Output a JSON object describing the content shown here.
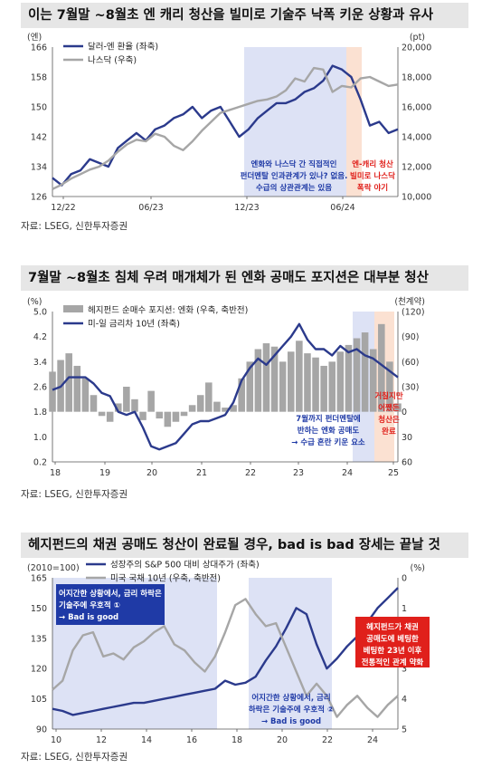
{
  "panels": [
    {
      "title": "이는 7월말 ~8월초 엔 캐리 청산을 빌미로 기술주 낙폭 키운 상황과 유사",
      "source": "자료: LSEG, 신한투자증권",
      "chart_data": {
        "type": "line",
        "left_unit": "(엔)",
        "right_unit": "(pt)",
        "left_ticks": [
          "166",
          "158",
          "150",
          "142",
          "134",
          "126"
        ],
        "right_ticks": [
          "20,000",
          "18,000",
          "16,000",
          "14,000",
          "12,000",
          "10,000"
        ],
        "x_ticks": [
          "12/22",
          "06/23",
          "12/23",
          "06/24"
        ],
        "ylim_left": [
          126,
          166
        ],
        "ylim_right": [
          10000,
          20000
        ],
        "series": [
          {
            "name": "달러-엔 환율 (좌축)",
            "color": "#2b3a8c",
            "axis": "left",
            "values": [
              131,
              129,
              132,
              133,
              136,
              135,
              134,
              139,
              141,
              143,
              141,
              144,
              145,
              147,
              148,
              150,
              147,
              149,
              150,
              146,
              142,
              144,
              147,
              149,
              151,
              151,
              152,
              154,
              155,
              157,
              161,
              160,
              158,
              152,
              145,
              146,
              143,
              144
            ]
          },
          {
            "name": "나스닥 (우축)",
            "color": "#a6a6a6",
            "axis": "right",
            "values": [
              10500,
              10800,
              11200,
              11500,
              11800,
              12000,
              12400,
              13000,
              13500,
              13800,
              13700,
              14200,
              14000,
              13400,
              13100,
              13700,
              14400,
              15000,
              15600,
              15800,
              16000,
              16200,
              16400,
              16500,
              16700,
              17100,
              17900,
              17700,
              18600,
              18500,
              17000,
              17400,
              17300,
              17900,
              18000,
              17700,
              17400,
              17500
            ]
          }
        ],
        "annotations": [
          {
            "lines": [
              "엔화와 나스닥 간 직접적인",
              "펀더멘탈 인과관계가 있나? 없음.",
              "수급의 상관관계는 있음"
            ],
            "color": "#1f3aa6"
          },
          {
            "lines": [
              "엔-캐리 청산",
              "빌미로 나스닥",
              "폭락 야기"
            ],
            "color": "#e0201b"
          }
        ]
      }
    },
    {
      "title": "7월말 ~8월초 침체 우려 매개체가 된 엔화 공매도 포지션은 대부분 청산",
      "source": "자료: LSEG, 신한투자증권",
      "chart_data": {
        "type": "line",
        "left_unit": "(%)",
        "right_unit": "(천계약)",
        "left_ticks": [
          "5.0",
          "4.2",
          "3.4",
          "2.6",
          "1.8",
          "1.0",
          "0.2"
        ],
        "right_ticks": [
          "(120)",
          "(90)",
          "(60)",
          "(30)",
          "0",
          "30",
          "60"
        ],
        "x_ticks": [
          "18",
          "19",
          "20",
          "21",
          "22",
          "23",
          "24",
          "25"
        ],
        "ylim_left": [
          0.2,
          5.0
        ],
        "ylim_right": [
          60,
          -120
        ],
        "series": [
          {
            "name": "헤지펀드 순매수 포지션: 엔화 (우축, 축반전)",
            "color": "#a6a6a6",
            "axis": "right",
            "kind": "bar",
            "values": [
              -48,
              -62,
              -70,
              -55,
              -40,
              -20,
              5,
              12,
              -10,
              -30,
              -15,
              10,
              -25,
              8,
              18,
              12,
              5,
              -8,
              -20,
              -35,
              -12,
              -5,
              -8,
              -40,
              -60,
              -75,
              -82,
              -78,
              -60,
              -72,
              -85,
              -70,
              -65,
              -55,
              -60,
              -72,
              -80,
              -88,
              -95,
              -75,
              -105,
              -60,
              -10
            ]
          },
          {
            "name": "미-일 금리차 10년 (좌축)",
            "color": "#2b3a8c",
            "axis": "left",
            "values": [
              2.5,
              2.6,
              2.9,
              2.9,
              2.9,
              2.7,
              2.4,
              2.3,
              1.8,
              1.7,
              1.8,
              1.3,
              0.7,
              0.6,
              0.7,
              0.8,
              1.1,
              1.4,
              1.5,
              1.5,
              1.6,
              1.7,
              2.1,
              2.8,
              3.2,
              3.5,
              3.3,
              3.6,
              3.9,
              4.2,
              4.6,
              4.1,
              3.8,
              3.8,
              3.6,
              3.9,
              3.7,
              3.8,
              3.6,
              3.5,
              3.3,
              3.1,
              2.9
            ]
          }
        ],
        "annotations": [
          {
            "lines": [
              "7월까지 펀더멘탈에",
              "반하는 엔화 공매도",
              "→ 수급 혼란 키운 요소"
            ],
            "color": "#1f3aa6"
          },
          {
            "lines": [
              "거칠지만",
              "어쨌든",
              "청산은",
              "완료"
            ],
            "color": "#e0201b"
          }
        ]
      }
    },
    {
      "title": "헤지펀드의 채권 공매도 청산이 완료될 경우, bad is bad 장세는 끝날 것",
      "source": "자료: LSEG, 신한투자증권",
      "chart_data": {
        "type": "line",
        "left_unit": "(2010=100)",
        "right_unit": "(%)",
        "left_ticks": [
          "165",
          "150",
          "135",
          "120",
          "105",
          "90"
        ],
        "right_ticks": [
          "0",
          "1",
          "2",
          "3",
          "4",
          "5"
        ],
        "x_ticks": [
          "10",
          "12",
          "14",
          "16",
          "18",
          "20",
          "22",
          "24"
        ],
        "ylim_left": [
          90,
          165
        ],
        "ylim_right": [
          5,
          0
        ],
        "series": [
          {
            "name": "성장주의 S&P 500 대비 상대주가 (좌축)",
            "color": "#2b3a8c",
            "axis": "left",
            "values": [
              100,
              99,
              97,
              98,
              99,
              100,
              101,
              102,
              103,
              103,
              104,
              105,
              106,
              107,
              108,
              109,
              110,
              114,
              112,
              113,
              116,
              124,
              131,
              140,
              150,
              147,
              132,
              120,
              125,
              131,
              136,
              143,
              150,
              155,
              160
            ]
          },
          {
            "name": "미국 국채 10년 (우축, 축반전)",
            "color": "#a6a6a6",
            "axis": "right",
            "values": [
              3.7,
              3.4,
              2.4,
              1.9,
              1.8,
              2.6,
              2.5,
              2.7,
              2.3,
              2.1,
              1.8,
              1.6,
              2.2,
              2.4,
              2.8,
              3.1,
              2.6,
              1.8,
              0.9,
              0.7,
              1.2,
              1.6,
              1.5,
              2.3,
              3.1,
              3.9,
              3.5,
              3.9,
              4.6,
              4.2,
              3.9,
              4.3,
              4.6,
              4.2,
              3.9
            ]
          }
        ],
        "annotations": [
          {
            "lines": [
              "어지간한 상황에서, 금리 하락은",
              "기술주에 우호적 ①",
              "→ Bad is good"
            ],
            "color": "#ffffff"
          },
          {
            "lines": [
              "어지간한 상황에서, 금리",
              "하락은 기술주에 우호적 ②",
              "→ Bad is good"
            ],
            "color": "#1f3aa6"
          },
          {
            "lines": [
              "헤지펀드가 채권",
              "공매도에 베팅한",
              "베팅한 23년 이후",
              "전통적인 관계 약화"
            ],
            "color": "#ffffff"
          }
        ]
      }
    }
  ],
  "colors": {
    "title_bg": "#e6e6e6",
    "blue_shade": "#dde2f5",
    "orange_shade": "#fbe1d2",
    "red_box": "#e0201b",
    "blue_box": "#1f3aa6"
  }
}
